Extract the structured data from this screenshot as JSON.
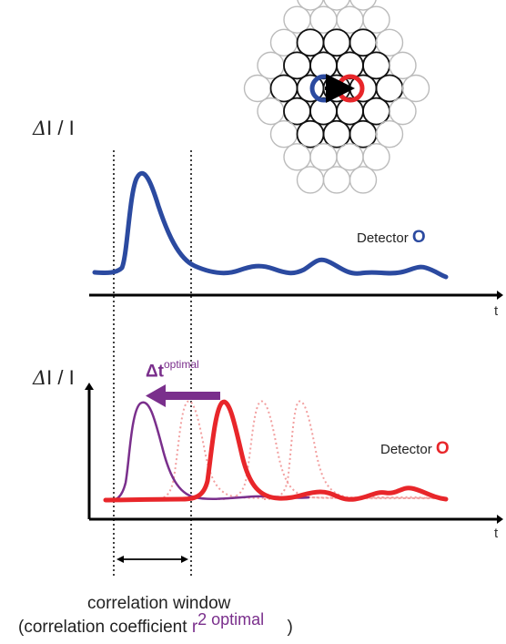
{
  "figure": {
    "top_y_label": {
      "delta": "Δ",
      "rest": "I / I"
    },
    "bottom_y_label": {
      "delta": "Δ",
      "rest": "I / I"
    },
    "time_axis_label_top": "t",
    "time_axis_label_bottom": "t",
    "detector_blue": {
      "label": "Detector",
      "marker": "O",
      "color": "#2b4aa0"
    },
    "detector_red": {
      "label": "Detector",
      "marker": "O",
      "color": "#e8262a"
    },
    "delta_t": {
      "symbol": "Δt",
      "superscript": "optimal",
      "color": "#7a2f8c"
    },
    "correlation": {
      "line1": "correlation window",
      "line2_start": "(correlation coefficient",
      "r_symbol": "r",
      "r_superscript": "2 optimal",
      "line2_end": ")"
    },
    "colors": {
      "blue": "#2b4aa0",
      "red": "#e8262a",
      "purple": "#7a2f8c",
      "pink": "#f2a0a0"
    }
  }
}
